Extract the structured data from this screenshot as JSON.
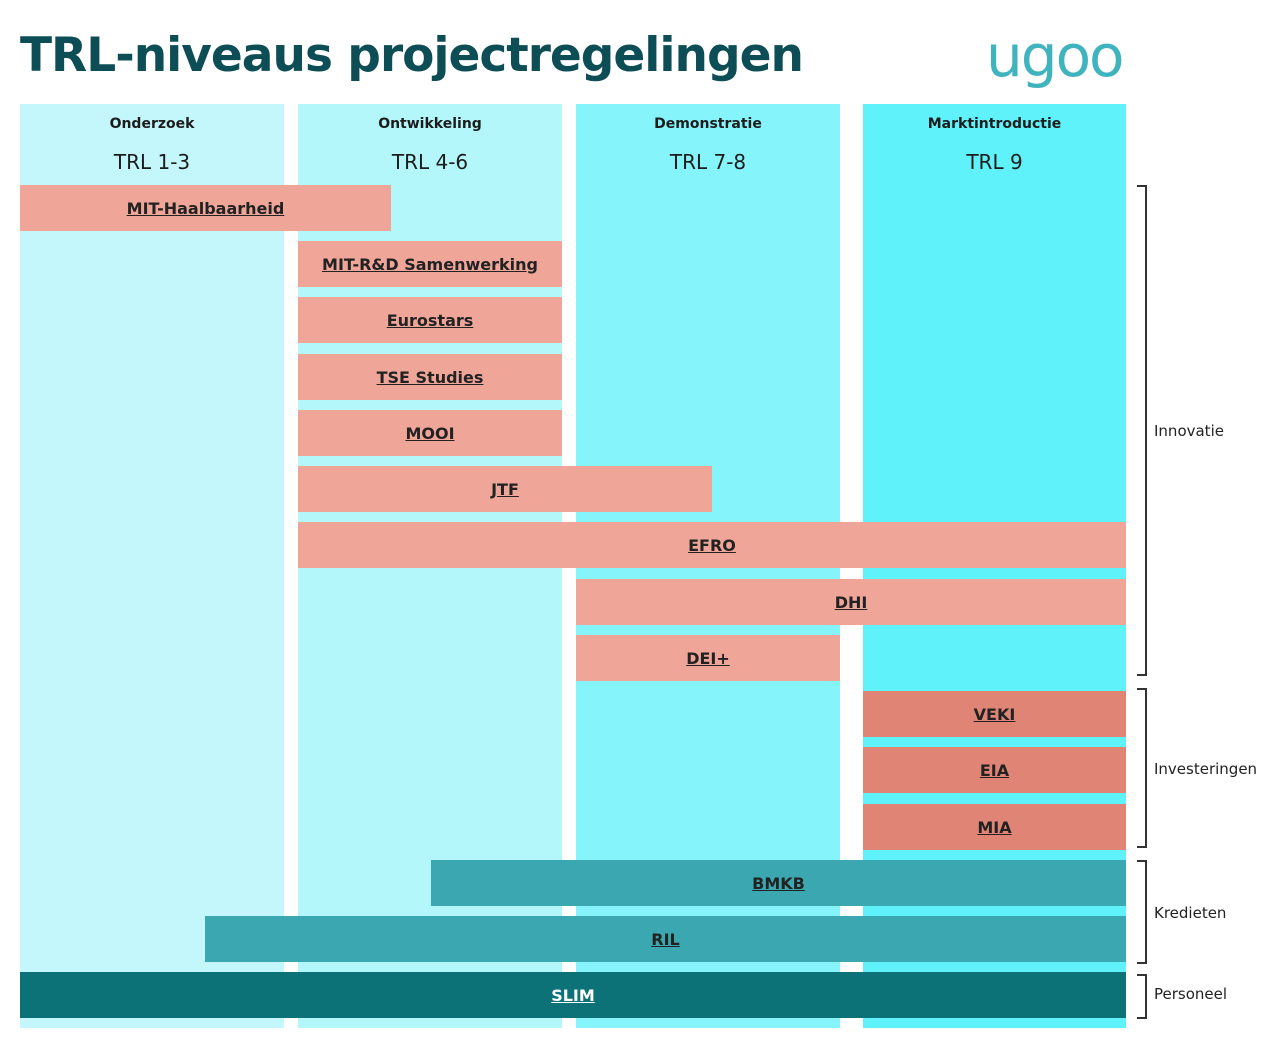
{
  "title": "TRL-niveaus projectregelingen",
  "logo": "ugoo",
  "colors": {
    "title": "#0d4d55",
    "logo": "#3fb3be",
    "col_onderzoek": "#c4f7fb",
    "col_ontwikkeling": "#b3f7fb",
    "col_demonstratie": "#86f4fb",
    "col_marktintroductie": "#5ff2fa",
    "innovatie_bar": "#f0a599",
    "investeringen_bar": "#e08576",
    "kredieten_bar": "#3ba8b1",
    "personeel_bar": "#0d7178"
  },
  "columns": [
    {
      "name": "Onderzoek",
      "trl": "TRL 1-3"
    },
    {
      "name": "Ontwikkeling",
      "trl": "TRL 4-6"
    },
    {
      "name": "Demonstratie",
      "trl": "TRL 7-8"
    },
    {
      "name": "Marktintroductie",
      "trl": "TRL 9"
    }
  ],
  "schemes": [
    {
      "label": "MIT-Haalbaarheid",
      "group": "Innovatie",
      "trl_from": 1,
      "trl_to": 4.5
    },
    {
      "label": "MIT-R&D Samenwerking",
      "group": "Innovatie",
      "trl_from": 4,
      "trl_to": 6
    },
    {
      "label": "Eurostars",
      "group": "Innovatie",
      "trl_from": 4,
      "trl_to": 6
    },
    {
      "label": "TSE Studies",
      "group": "Innovatie",
      "trl_from": 4,
      "trl_to": 6
    },
    {
      "label": "MOOI",
      "group": "Innovatie",
      "trl_from": 4,
      "trl_to": 6
    },
    {
      "label": "JTF",
      "group": "Innovatie",
      "trl_from": 4,
      "trl_to": 7.5
    },
    {
      "label": "EFRO",
      "group": "Innovatie",
      "trl_from": 4,
      "trl_to": 9
    },
    {
      "label": "DHI",
      "group": "Innovatie",
      "trl_from": 7,
      "trl_to": 9
    },
    {
      "label": "DEI+",
      "group": "Innovatie",
      "trl_from": 7,
      "trl_to": 8
    },
    {
      "label": "VEKI",
      "group": "Investeringen",
      "trl_from": 9,
      "trl_to": 9
    },
    {
      "label": "EIA",
      "group": "Investeringen",
      "trl_from": 9,
      "trl_to": 9
    },
    {
      "label": "MIA",
      "group": "Investeringen",
      "trl_from": 9,
      "trl_to": 9
    },
    {
      "label": "BMKB",
      "group": "Kredieten",
      "trl_from": 5,
      "trl_to": 9
    },
    {
      "label": "RIL",
      "group": "Kredieten",
      "trl_from": 3,
      "trl_to": 9
    },
    {
      "label": "SLIM",
      "group": "Personeel",
      "trl_from": 1,
      "trl_to": 9
    }
  ],
  "groups": [
    "Innovatie",
    "Investeringen",
    "Kredieten",
    "Personeel"
  ]
}
